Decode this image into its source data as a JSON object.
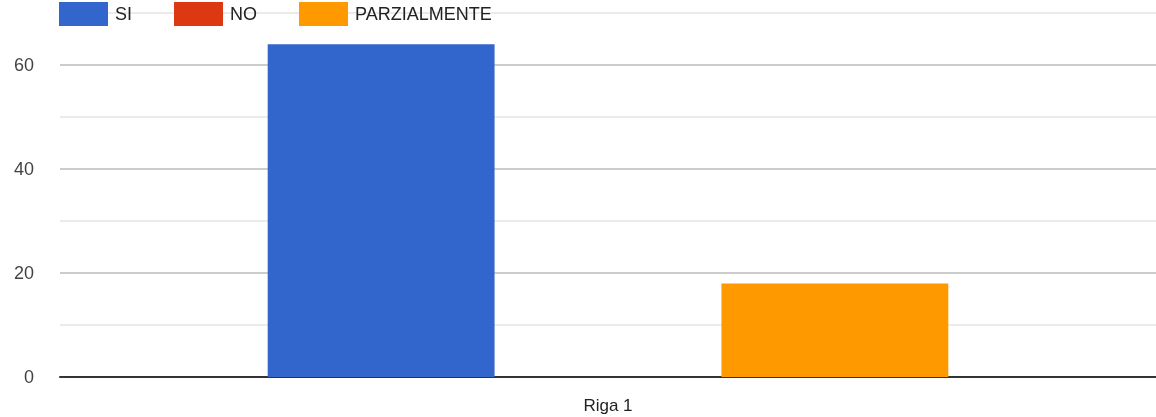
{
  "chart_data": {
    "type": "bar",
    "categories": [
      "Riga 1"
    ],
    "series": [
      {
        "name": "SI",
        "color": "#3366cc",
        "values": [
          64
        ]
      },
      {
        "name": "NO",
        "color": "#dc3912",
        "values": [
          0
        ]
      },
      {
        "name": "PARZIALMENTE",
        "color": "#ff9900",
        "values": [
          18
        ]
      }
    ],
    "ylim": [
      0,
      70
    ],
    "yticks": [
      0,
      {
        "value": 10,
        "label": null
      },
      20,
      {
        "value": 30,
        "label": null
      },
      40,
      {
        "value": 50,
        "label": null
      },
      60,
      {
        "value": 70,
        "label": null
      }
    ],
    "grid": "y",
    "legend": "top left"
  }
}
